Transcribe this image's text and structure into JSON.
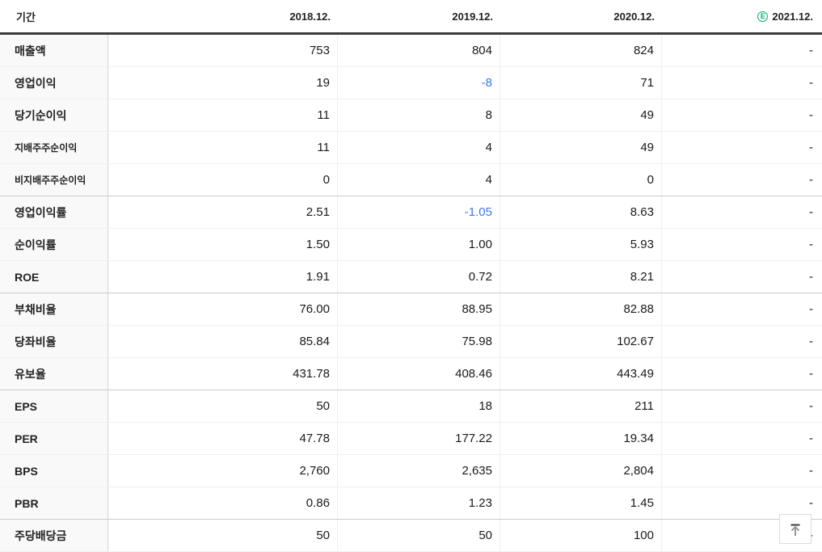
{
  "table": {
    "header": {
      "period_label": "기간",
      "columns": [
        {
          "label": "2018.12.",
          "estimate": false
        },
        {
          "label": "2019.12.",
          "estimate": false
        },
        {
          "label": "2020.12.",
          "estimate": false
        },
        {
          "label": "2021.12.",
          "estimate": true
        }
      ],
      "estimate_letter": "E"
    },
    "rows": [
      {
        "label": "매출액",
        "sub": false,
        "group_end": false,
        "values": [
          {
            "text": "753"
          },
          {
            "text": "804"
          },
          {
            "text": "824"
          },
          {
            "text": "-"
          }
        ]
      },
      {
        "label": "영업이익",
        "sub": false,
        "group_end": false,
        "values": [
          {
            "text": "19"
          },
          {
            "text": "-8",
            "negative": true
          },
          {
            "text": "71"
          },
          {
            "text": "-"
          }
        ]
      },
      {
        "label": "당기순이익",
        "sub": false,
        "group_end": false,
        "values": [
          {
            "text": "11"
          },
          {
            "text": "8"
          },
          {
            "text": "49"
          },
          {
            "text": "-"
          }
        ]
      },
      {
        "label": "지배주주순이익",
        "sub": true,
        "group_end": false,
        "values": [
          {
            "text": "11"
          },
          {
            "text": "4"
          },
          {
            "text": "49"
          },
          {
            "text": "-"
          }
        ]
      },
      {
        "label": "비지배주주순이익",
        "sub": true,
        "group_end": true,
        "values": [
          {
            "text": "0"
          },
          {
            "text": "4"
          },
          {
            "text": "0"
          },
          {
            "text": "-"
          }
        ]
      },
      {
        "label": "영업이익률",
        "sub": false,
        "group_end": false,
        "values": [
          {
            "text": "2.51"
          },
          {
            "text": "-1.05",
            "negative": true
          },
          {
            "text": "8.63"
          },
          {
            "text": "-"
          }
        ]
      },
      {
        "label": "순이익률",
        "sub": false,
        "group_end": false,
        "values": [
          {
            "text": "1.50"
          },
          {
            "text": "1.00"
          },
          {
            "text": "5.93"
          },
          {
            "text": "-"
          }
        ]
      },
      {
        "label": "ROE",
        "sub": false,
        "group_end": true,
        "values": [
          {
            "text": "1.91"
          },
          {
            "text": "0.72"
          },
          {
            "text": "8.21"
          },
          {
            "text": "-"
          }
        ]
      },
      {
        "label": "부채비율",
        "sub": false,
        "group_end": false,
        "values": [
          {
            "text": "76.00"
          },
          {
            "text": "88.95"
          },
          {
            "text": "82.88"
          },
          {
            "text": "-"
          }
        ]
      },
      {
        "label": "당좌비율",
        "sub": false,
        "group_end": false,
        "values": [
          {
            "text": "85.84"
          },
          {
            "text": "75.98"
          },
          {
            "text": "102.67"
          },
          {
            "text": "-"
          }
        ]
      },
      {
        "label": "유보율",
        "sub": false,
        "group_end": true,
        "values": [
          {
            "text": "431.78"
          },
          {
            "text": "408.46"
          },
          {
            "text": "443.49"
          },
          {
            "text": "-"
          }
        ]
      },
      {
        "label": "EPS",
        "sub": false,
        "group_end": false,
        "values": [
          {
            "text": "50"
          },
          {
            "text": "18"
          },
          {
            "text": "211"
          },
          {
            "text": "-"
          }
        ]
      },
      {
        "label": "PER",
        "sub": false,
        "group_end": false,
        "values": [
          {
            "text": "47.78"
          },
          {
            "text": "177.22"
          },
          {
            "text": "19.34"
          },
          {
            "text": "-"
          }
        ]
      },
      {
        "label": "BPS",
        "sub": false,
        "group_end": false,
        "values": [
          {
            "text": "2,760"
          },
          {
            "text": "2,635"
          },
          {
            "text": "2,804"
          },
          {
            "text": "-"
          }
        ]
      },
      {
        "label": "PBR",
        "sub": false,
        "group_end": true,
        "values": [
          {
            "text": "0.86"
          },
          {
            "text": "1.23"
          },
          {
            "text": "1.45"
          },
          {
            "text": "-"
          }
        ]
      },
      {
        "label": "주당배당금",
        "sub": false,
        "group_end": false,
        "values": [
          {
            "text": "50"
          },
          {
            "text": "50"
          },
          {
            "text": "100"
          },
          {
            "text": "-"
          }
        ]
      }
    ]
  },
  "colors": {
    "negative_value": "#3c78eb",
    "estimate_green": "#00b26a",
    "header_border": "#3b3b3b"
  },
  "scroll_top_button": {
    "icon": "arrow-up-to-line"
  }
}
